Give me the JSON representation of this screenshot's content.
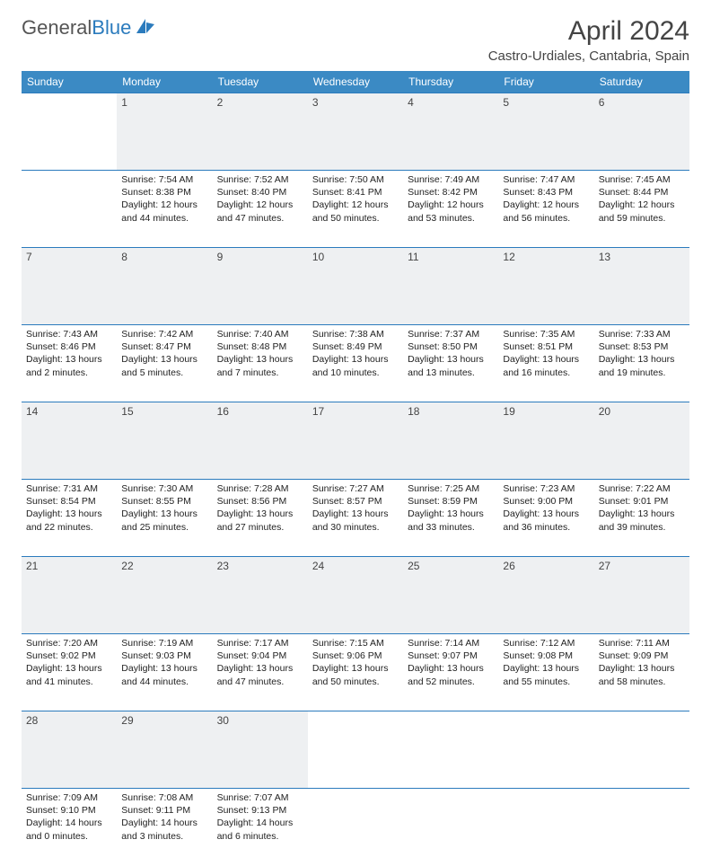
{
  "logo": {
    "text1": "General",
    "text2": "Blue"
  },
  "title": "April 2024",
  "location": "Castro-Urdiales, Cantabria, Spain",
  "day_headers": [
    "Sunday",
    "Monday",
    "Tuesday",
    "Wednesday",
    "Thursday",
    "Friday",
    "Saturday"
  ],
  "header_bg": "#3b8ac4",
  "rule_color": "#2b7bbd",
  "daynum_bg": "#eef0f2",
  "weeks": [
    {
      "nums": [
        "",
        "1",
        "2",
        "3",
        "4",
        "5",
        "6"
      ],
      "cells": [
        [],
        [
          "Sunrise: 7:54 AM",
          "Sunset: 8:38 PM",
          "Daylight: 12 hours and 44 minutes."
        ],
        [
          "Sunrise: 7:52 AM",
          "Sunset: 8:40 PM",
          "Daylight: 12 hours and 47 minutes."
        ],
        [
          "Sunrise: 7:50 AM",
          "Sunset: 8:41 PM",
          "Daylight: 12 hours and 50 minutes."
        ],
        [
          "Sunrise: 7:49 AM",
          "Sunset: 8:42 PM",
          "Daylight: 12 hours and 53 minutes."
        ],
        [
          "Sunrise: 7:47 AM",
          "Sunset: 8:43 PM",
          "Daylight: 12 hours and 56 minutes."
        ],
        [
          "Sunrise: 7:45 AM",
          "Sunset: 8:44 PM",
          "Daylight: 12 hours and 59 minutes."
        ]
      ]
    },
    {
      "nums": [
        "7",
        "8",
        "9",
        "10",
        "11",
        "12",
        "13"
      ],
      "cells": [
        [
          "Sunrise: 7:43 AM",
          "Sunset: 8:46 PM",
          "Daylight: 13 hours and 2 minutes."
        ],
        [
          "Sunrise: 7:42 AM",
          "Sunset: 8:47 PM",
          "Daylight: 13 hours and 5 minutes."
        ],
        [
          "Sunrise: 7:40 AM",
          "Sunset: 8:48 PM",
          "Daylight: 13 hours and 7 minutes."
        ],
        [
          "Sunrise: 7:38 AM",
          "Sunset: 8:49 PM",
          "Daylight: 13 hours and 10 minutes."
        ],
        [
          "Sunrise: 7:37 AM",
          "Sunset: 8:50 PM",
          "Daylight: 13 hours and 13 minutes."
        ],
        [
          "Sunrise: 7:35 AM",
          "Sunset: 8:51 PM",
          "Daylight: 13 hours and 16 minutes."
        ],
        [
          "Sunrise: 7:33 AM",
          "Sunset: 8:53 PM",
          "Daylight: 13 hours and 19 minutes."
        ]
      ]
    },
    {
      "nums": [
        "14",
        "15",
        "16",
        "17",
        "18",
        "19",
        "20"
      ],
      "cells": [
        [
          "Sunrise: 7:31 AM",
          "Sunset: 8:54 PM",
          "Daylight: 13 hours and 22 minutes."
        ],
        [
          "Sunrise: 7:30 AM",
          "Sunset: 8:55 PM",
          "Daylight: 13 hours and 25 minutes."
        ],
        [
          "Sunrise: 7:28 AM",
          "Sunset: 8:56 PM",
          "Daylight: 13 hours and 27 minutes."
        ],
        [
          "Sunrise: 7:27 AM",
          "Sunset: 8:57 PM",
          "Daylight: 13 hours and 30 minutes."
        ],
        [
          "Sunrise: 7:25 AM",
          "Sunset: 8:59 PM",
          "Daylight: 13 hours and 33 minutes."
        ],
        [
          "Sunrise: 7:23 AM",
          "Sunset: 9:00 PM",
          "Daylight: 13 hours and 36 minutes."
        ],
        [
          "Sunrise: 7:22 AM",
          "Sunset: 9:01 PM",
          "Daylight: 13 hours and 39 minutes."
        ]
      ]
    },
    {
      "nums": [
        "21",
        "22",
        "23",
        "24",
        "25",
        "26",
        "27"
      ],
      "cells": [
        [
          "Sunrise: 7:20 AM",
          "Sunset: 9:02 PM",
          "Daylight: 13 hours and 41 minutes."
        ],
        [
          "Sunrise: 7:19 AM",
          "Sunset: 9:03 PM",
          "Daylight: 13 hours and 44 minutes."
        ],
        [
          "Sunrise: 7:17 AM",
          "Sunset: 9:04 PM",
          "Daylight: 13 hours and 47 minutes."
        ],
        [
          "Sunrise: 7:15 AM",
          "Sunset: 9:06 PM",
          "Daylight: 13 hours and 50 minutes."
        ],
        [
          "Sunrise: 7:14 AM",
          "Sunset: 9:07 PM",
          "Daylight: 13 hours and 52 minutes."
        ],
        [
          "Sunrise: 7:12 AM",
          "Sunset: 9:08 PM",
          "Daylight: 13 hours and 55 minutes."
        ],
        [
          "Sunrise: 7:11 AM",
          "Sunset: 9:09 PM",
          "Daylight: 13 hours and 58 minutes."
        ]
      ]
    },
    {
      "nums": [
        "28",
        "29",
        "30",
        "",
        "",
        "",
        ""
      ],
      "cells": [
        [
          "Sunrise: 7:09 AM",
          "Sunset: 9:10 PM",
          "Daylight: 14 hours and 0 minutes."
        ],
        [
          "Sunrise: 7:08 AM",
          "Sunset: 9:11 PM",
          "Daylight: 14 hours and 3 minutes."
        ],
        [
          "Sunrise: 7:07 AM",
          "Sunset: 9:13 PM",
          "Daylight: 14 hours and 6 minutes."
        ],
        [],
        [],
        [],
        []
      ]
    }
  ]
}
